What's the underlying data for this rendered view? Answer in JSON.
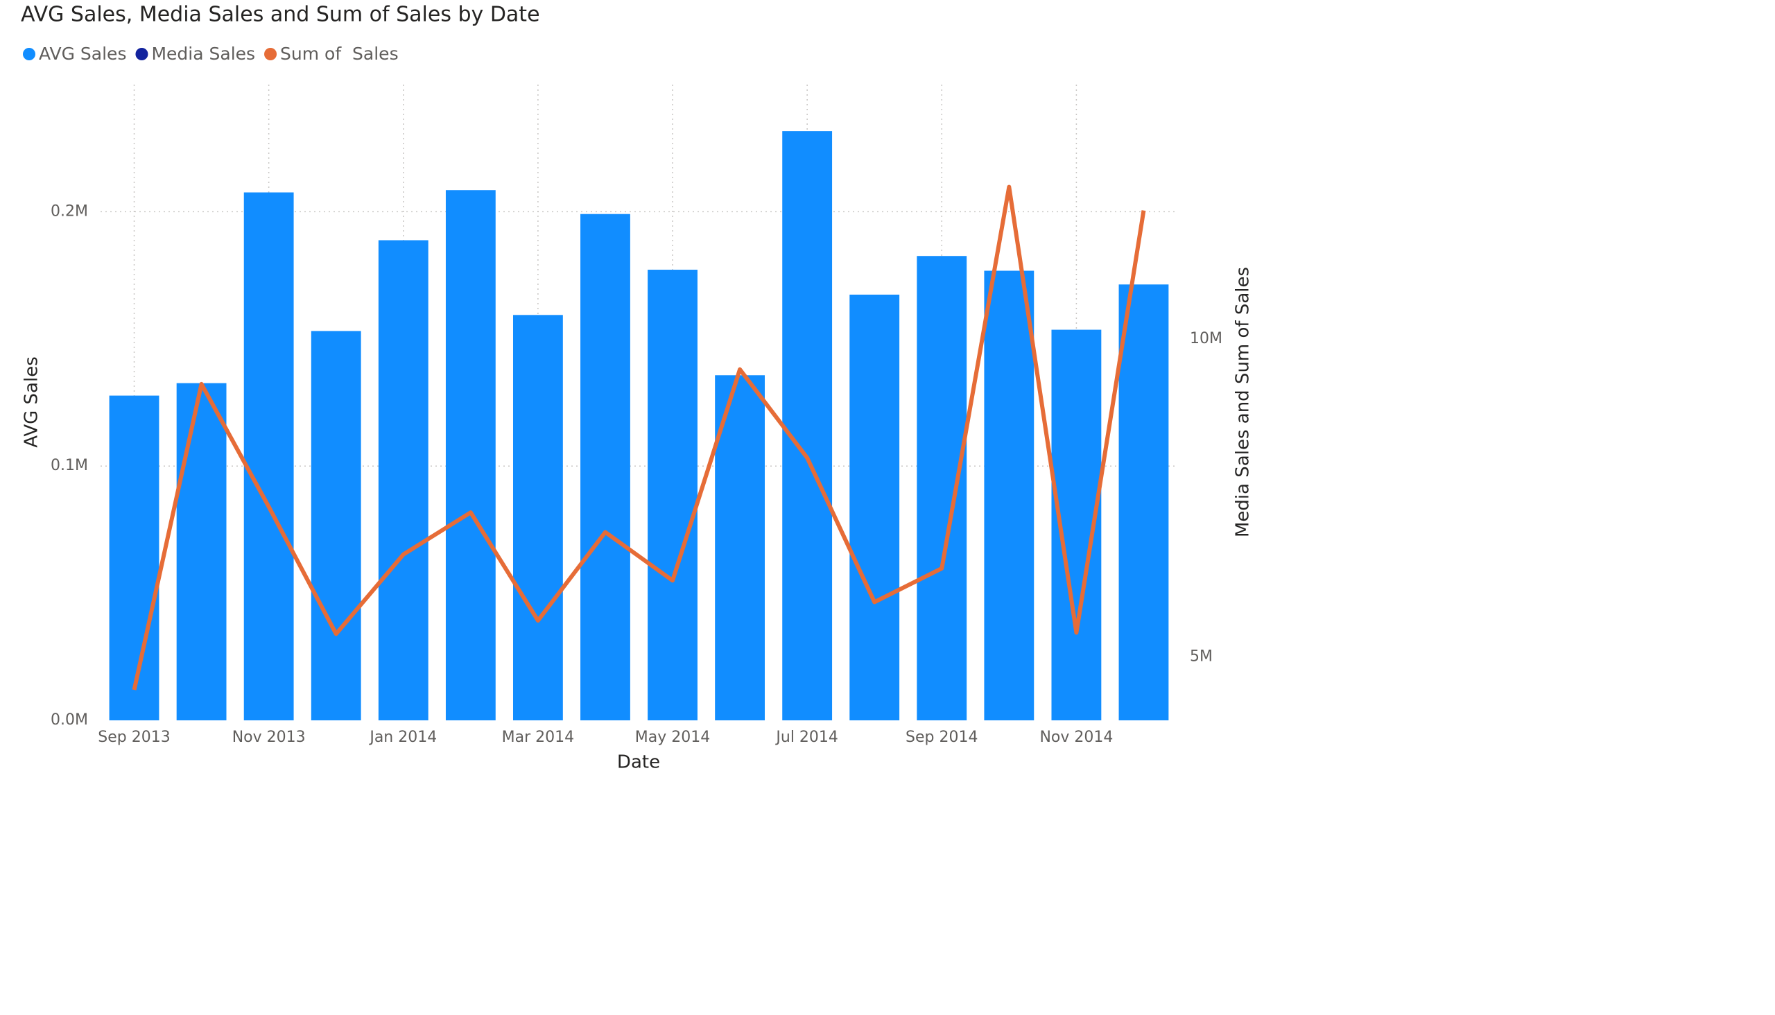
{
  "chart_data": {
    "type": "combo",
    "title": "AVG Sales, Media Sales and Sum of Sales by Date",
    "x_label": "Date",
    "y_label": "AVG Sales",
    "y2_label": "Media Sales and Sum of Sales",
    "categories": [
      "Sep 2013",
      null,
      "Nov 2013",
      null,
      "Jan 2014",
      null,
      "Mar 2014",
      null,
      "May 2014",
      null,
      "Jul 2014",
      null,
      "Sep 2014",
      null,
      "Nov 2014",
      null
    ],
    "series": [
      {
        "name": "AVG Sales",
        "type": "bar",
        "color": "#118dff",
        "values": [
          127700,
          132600,
          207600,
          153100,
          188800,
          208500,
          159400,
          199100,
          177200,
          135700,
          231700,
          167400,
          182600,
          176800,
          153600,
          171400
        ]
      },
      {
        "name": "Media Sales",
        "type": "line",
        "axis": "y2",
        "color": "#12239e",
        "values": [
          null,
          null,
          null,
          null,
          null,
          null,
          null,
          null,
          null,
          null,
          null,
          null,
          null,
          null,
          null,
          null
        ]
      },
      {
        "name": "Sum of  Sales",
        "type": "line",
        "axis": "y2",
        "color": "#e66c37",
        "values": [
          4480000,
          9290000,
          7360000,
          5360000,
          6610000,
          7270000,
          5570000,
          6960000,
          6200000,
          9520000,
          8130000,
          5860000,
          6390000,
          12390000,
          5380000,
          12020000
        ]
      }
    ],
    "ylim": [
      0,
      250000
    ],
    "yticks": [
      {
        "value": 0,
        "label": "0.0M"
      },
      {
        "value": 100000,
        "label": "0.1M"
      },
      {
        "value": 200000,
        "label": "0.2M"
      }
    ],
    "y2lim": [
      4000000,
      14000000
    ],
    "y2ticks": [
      {
        "value": 5000000,
        "label": "5M"
      },
      {
        "value": 10000000,
        "label": "10M"
      }
    ],
    "grid": true,
    "legend": "top-left"
  }
}
